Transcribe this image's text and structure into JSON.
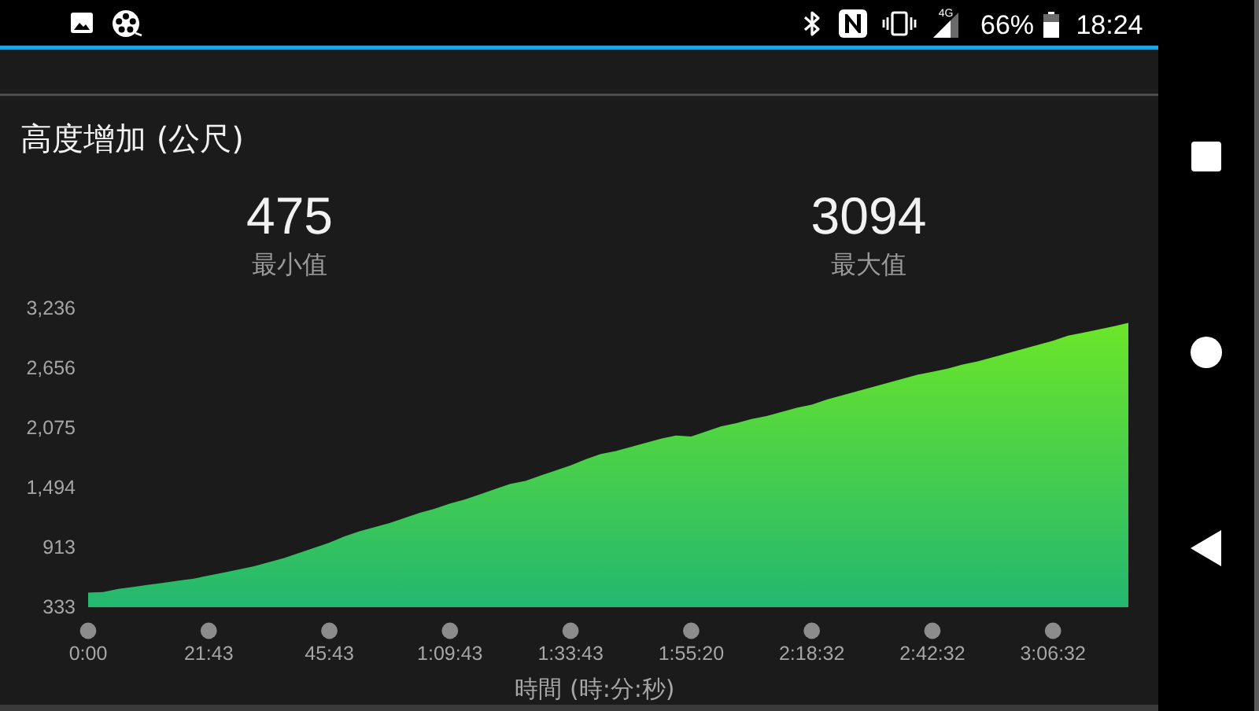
{
  "chart_data": {
    "type": "area",
    "title": "高度增加 (公尺)",
    "xlabel": "時間 (時:分:秒)",
    "annotations": [
      "475",
      "最小值",
      "3094",
      "最大值",
      "4G",
      "66%",
      "18:24"
    ],
    "categories": [
      "0:00",
      null,
      null,
      null,
      null,
      null,
      null,
      null,
      "21:43",
      null,
      null,
      null,
      null,
      null,
      null,
      null,
      "45:43",
      null,
      null,
      null,
      null,
      null,
      null,
      null,
      "1:09:43",
      null,
      null,
      null,
      null,
      null,
      null,
      null,
      "1:33:43",
      null,
      null,
      null,
      null,
      null,
      null,
      null,
      "1:55:20",
      null,
      null,
      null,
      null,
      null,
      null,
      null,
      "2:18:32",
      null,
      null,
      null,
      null,
      null,
      null,
      null,
      "2:42:32",
      null,
      null,
      null,
      null,
      null,
      null,
      null,
      "3:06:32",
      null,
      null,
      null,
      null,
      null
    ],
    "series": [
      {
        "color": "#46cd4f",
        "values": [
          475,
          480,
          510,
          530,
          550,
          570,
          590,
          610,
          640,
          670,
          700,
          730,
          770,
          810,
          860,
          910,
          960,
          1020,
          1070,
          1110,
          1150,
          1200,
          1250,
          1290,
          1340,
          1380,
          1430,
          1480,
          1530,
          1560,
          1610,
          1660,
          1710,
          1770,
          1820,
          1850,
          1890,
          1930,
          1970,
          2000,
          1990,
          2040,
          2090,
          2120,
          2160,
          2190,
          2230,
          2270,
          2300,
          2350,
          2390,
          2430,
          2470,
          2510,
          2550,
          2590,
          2620,
          2650,
          2690,
          2720,
          2760,
          2800,
          2840,
          2880,
          2920,
          2970,
          3000,
          3030,
          3060,
          3094
        ]
      }
    ],
    "ylim": [
      333,
      3236
    ],
    "yticks": [
      333,
      913,
      {
        "value": 1494,
        "label": "1,494"
      },
      {
        "value": 2075,
        "label": "2,075"
      },
      {
        "value": 2656,
        "label": "2,656"
      },
      {
        "value": 3236,
        "label": "3,236"
      }
    ]
  }
}
